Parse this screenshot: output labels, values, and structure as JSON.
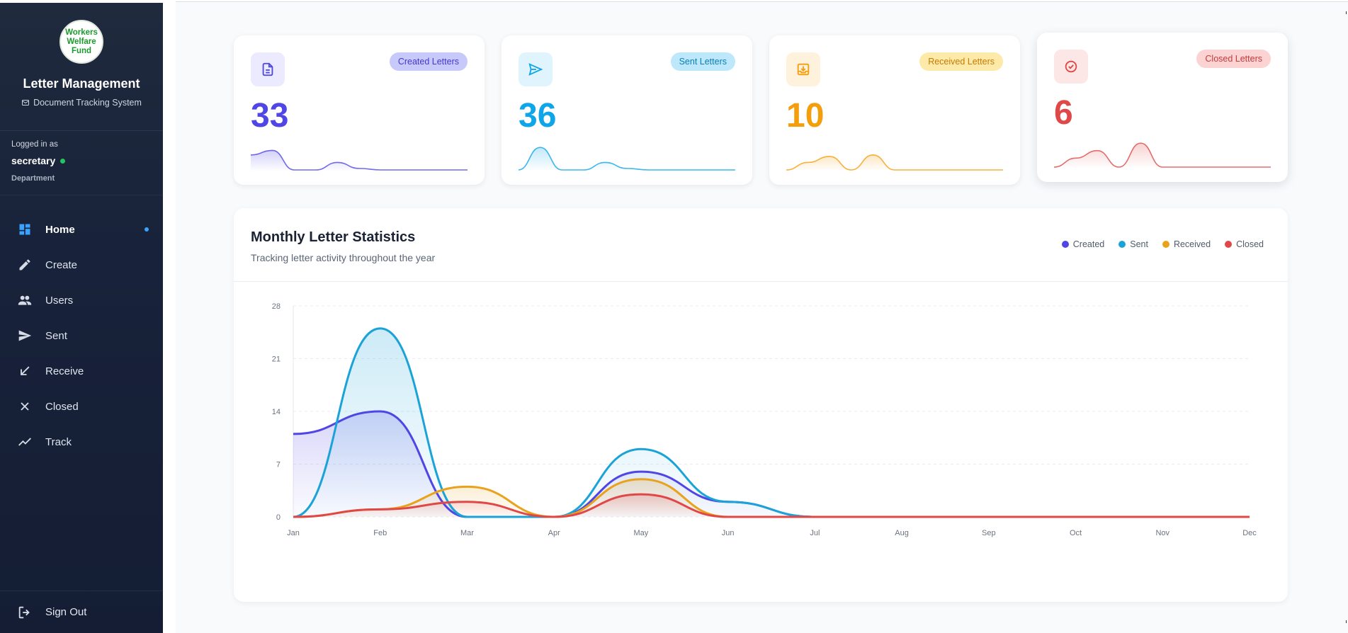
{
  "sidebar": {
    "logo_text": "Workers Welfare Fund",
    "title": "Letter Management",
    "subtitle": "Document Tracking System",
    "user": {
      "logged_in_label": "Logged in as",
      "username": "secretary",
      "department": "Department"
    },
    "nav": [
      {
        "label": "Home",
        "icon": "dashboard-icon",
        "active": true
      },
      {
        "label": "Create",
        "icon": "pencil-icon",
        "active": false
      },
      {
        "label": "Users",
        "icon": "users-icon",
        "active": false
      },
      {
        "label": "Sent",
        "icon": "send-icon",
        "active": false
      },
      {
        "label": "Receive",
        "icon": "arrow-down-left-icon",
        "active": false
      },
      {
        "label": "Closed",
        "icon": "close-icon",
        "active": false
      },
      {
        "label": "Track",
        "icon": "trend-line-icon",
        "active": false
      }
    ],
    "sign_out": "Sign Out"
  },
  "stats": [
    {
      "label": "Created Letters",
      "value": "33",
      "icon": "document-icon",
      "color": "#4f46e5",
      "bg": "#eceafe",
      "badge_bg": "#c7c9fb",
      "badge_color": "#4338ca"
    },
    {
      "label": "Sent Letters",
      "value": "36",
      "icon": "send-icon",
      "color": "#0ea5e9",
      "bg": "#e0f4fd",
      "badge_bg": "#bde7fb",
      "badge_color": "#0b7fb3"
    },
    {
      "label": "Received Letters",
      "value": "10",
      "icon": "inbox-download-icon",
      "color": "#f59e0b",
      "bg": "#fef2dd",
      "badge_bg": "#fdeaa9",
      "badge_color": "#c77a05"
    },
    {
      "label": "Closed Letters",
      "value": "6",
      "icon": "check-circle-icon",
      "color": "#e04848",
      "bg": "#fde6e6",
      "badge_bg": "#fbd3d3",
      "badge_color": "#c23a3a"
    }
  ],
  "chart": {
    "title": "Monthly Letter Statistics",
    "subtitle": "Tracking letter activity throughout the year"
  },
  "chart_data": {
    "type": "area",
    "categories": [
      "Jan",
      "Feb",
      "Mar",
      "Apr",
      "May",
      "Jun",
      "Jul",
      "Aug",
      "Sep",
      "Oct",
      "Nov",
      "Dec"
    ],
    "ylim": [
      0,
      28
    ],
    "yticks": [
      0,
      7,
      14,
      21,
      28
    ],
    "grid": true,
    "legend_position": "top-right",
    "series": [
      {
        "name": "Created",
        "color": "#4f46e5",
        "values": [
          11,
          14,
          0,
          0,
          6,
          2,
          0,
          0,
          0,
          0,
          0,
          0
        ]
      },
      {
        "name": "Sent",
        "color": "#1ba3d8",
        "values": [
          0,
          25,
          0,
          0,
          9,
          2,
          0,
          0,
          0,
          0,
          0,
          0
        ]
      },
      {
        "name": "Received",
        "color": "#e9a21b",
        "values": [
          0,
          1,
          4,
          0,
          5,
          0,
          0,
          0,
          0,
          0,
          0,
          0
        ]
      },
      {
        "name": "Closed",
        "color": "#e04848",
        "values": [
          0,
          1,
          2,
          0,
          3,
          0,
          0,
          0,
          0,
          0,
          0,
          0
        ]
      }
    ],
    "sparklines": [
      [
        2,
        2.6,
        0,
        0,
        1,
        0.2,
        0,
        0,
        0,
        0,
        0
      ],
      [
        0,
        3,
        0,
        0,
        1,
        0.2,
        0,
        0,
        0,
        0,
        0
      ],
      [
        0,
        1,
        1.8,
        0,
        2,
        0,
        0,
        0,
        0,
        0,
        0
      ],
      [
        0,
        1.2,
        2.2,
        0,
        3.2,
        0,
        0,
        0,
        0,
        0,
        0
      ]
    ]
  }
}
